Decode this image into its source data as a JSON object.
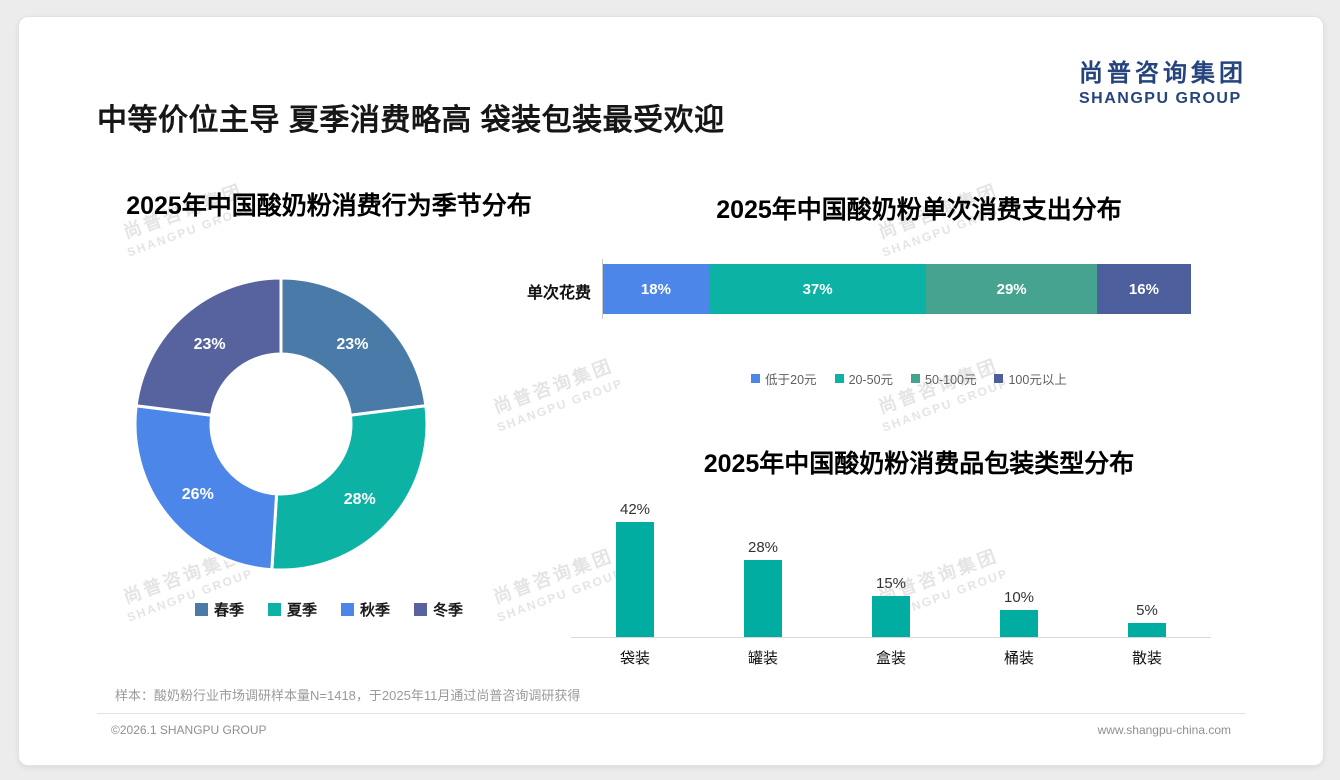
{
  "page": {
    "title": "中等价位主导 夏季消费略高 袋装包装最受欢迎",
    "logo": {
      "cn": "尚普咨询集团",
      "en": "SHANGPU GROUP"
    },
    "watermark": {
      "cn": "尚普咨询集团",
      "en": "SHANGPU GROUP"
    },
    "note": "样本：酸奶粉行业市场调研样本量N=1418，于2025年11月通过尚普咨询调研获得",
    "footer": {
      "left": "©2026.1 SHANGPU GROUP",
      "right": "www.shangpu-china.com"
    },
    "brand_color": "#25447d"
  },
  "chart_data": [
    {
      "type": "pie",
      "variant": "donut",
      "title": "2025年中国酸奶粉消费行为季节分布",
      "categories": [
        "春季",
        "夏季",
        "秋季",
        "冬季"
      ],
      "values": [
        23,
        28,
        26,
        23
      ],
      "labels": [
        "23%",
        "28%",
        "26%",
        "23%"
      ],
      "colors": [
        "#4a7ba8",
        "#0cb2a3",
        "#4d86e9",
        "#57639e"
      ],
      "start_angle_deg": -90,
      "legend_position": "bottom"
    },
    {
      "type": "bar",
      "variant": "horizontal-stacked",
      "title": "2025年中国酸奶粉单次消费支出分布",
      "row_label": "单次花费",
      "series": [
        {
          "name": "低于20元",
          "value": 18,
          "label": "18%",
          "color": "#4d86e9"
        },
        {
          "name": "20-50元",
          "value": 37,
          "label": "37%",
          "color": "#0cb2a3"
        },
        {
          "name": "50-100元",
          "value": 29,
          "label": "29%",
          "color": "#46a38f"
        },
        {
          "name": "100元以上",
          "value": 16,
          "label": "16%",
          "color": "#4c5e9c"
        }
      ],
      "xlim": [
        0,
        100
      ],
      "legend_position": "bottom"
    },
    {
      "type": "bar",
      "title": "2025年中国酸奶粉消费品包装类型分布",
      "categories": [
        "袋装",
        "罐装",
        "盒装",
        "桶装",
        "散装"
      ],
      "values": [
        42,
        28,
        15,
        10,
        5
      ],
      "labels": [
        "42%",
        "28%",
        "15%",
        "10%",
        "5%"
      ],
      "bar_color": "#00ada0",
      "ylim": [
        0,
        45
      ],
      "grid": false
    }
  ]
}
